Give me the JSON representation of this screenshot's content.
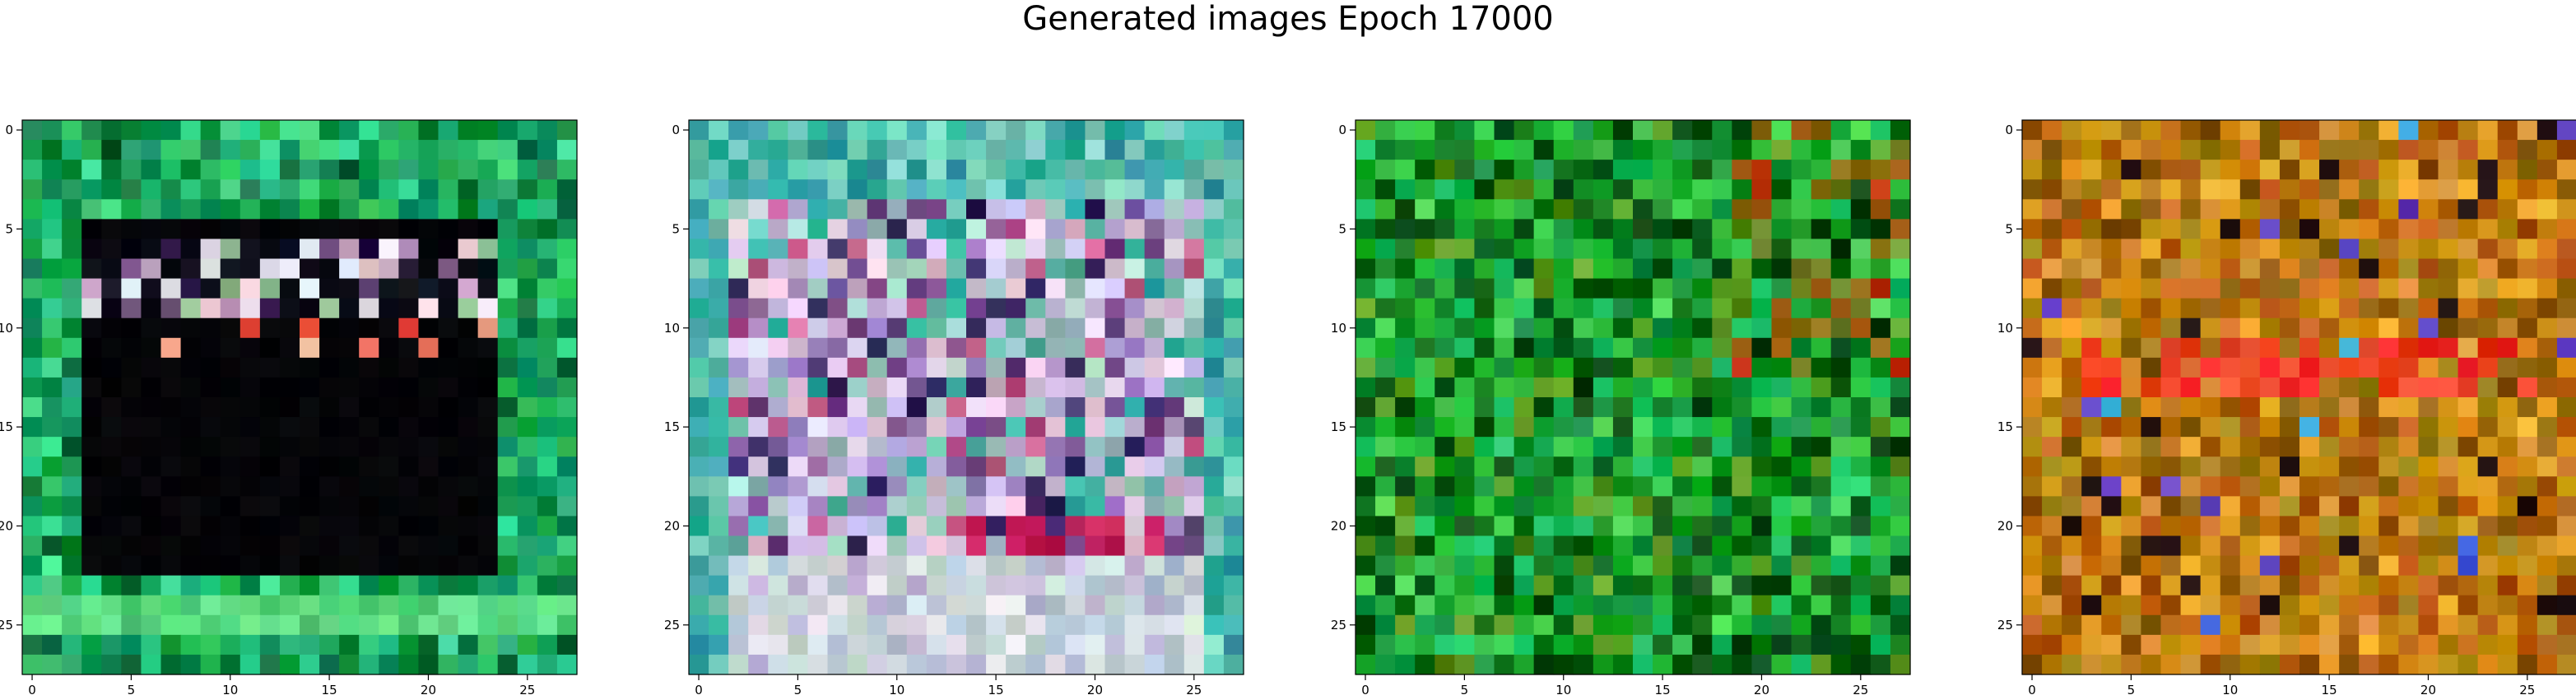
{
  "figure": {
    "title": "Generated images Epoch 17000"
  },
  "chart_data": [
    {
      "type": "heatmap",
      "grid": {
        "rows": 28,
        "cols": 28
      },
      "xticks": [
        0,
        5,
        10,
        15,
        20,
        25
      ],
      "yticks": [
        0,
        5,
        10,
        15,
        20,
        25
      ],
      "xlim": [
        -0.5,
        27.5
      ],
      "ylim": [
        27.5,
        -0.5
      ],
      "style": "green-frame-dark-center",
      "palette": [
        "#0f8f3f",
        "#21b04d",
        "#1a9e6a",
        "#34c26a",
        "#0a6a3a",
        "#2fd08a",
        "#11995a"
      ]
    },
    {
      "type": "heatmap",
      "grid": {
        "rows": 28,
        "cols": 28
      },
      "xticks": [
        0,
        5,
        10,
        15,
        20,
        25
      ],
      "yticks": [
        0,
        5,
        10,
        15,
        20,
        25
      ],
      "xlim": [
        -0.5,
        27.5
      ],
      "ylim": [
        27.5,
        -0.5
      ],
      "style": "pastel-purple-teal",
      "palette": [
        "#b7a6d6",
        "#9ec4c0",
        "#c9bde0",
        "#8f6fb3",
        "#5fb8a8",
        "#d7c9e3",
        "#7a4f8f",
        "#c05a8a",
        "#3b2b66",
        "#e0c2d8",
        "#a8d4c8",
        "#2fb0a0"
      ]
    },
    {
      "type": "heatmap",
      "grid": {
        "rows": 28,
        "cols": 28
      },
      "xticks": [
        0,
        5,
        10,
        15,
        20,
        25
      ],
      "yticks": [
        0,
        5,
        10,
        15,
        20,
        25
      ],
      "xlim": [
        -0.5,
        27.5
      ],
      "ylim": [
        27.5,
        -0.5
      ],
      "style": "green-field",
      "palette": [
        "#0a7a1a",
        "#14a028",
        "#066010",
        "#22b832",
        "#0e8c3a",
        "#3fc84a",
        "#5a9a20",
        "#044a10",
        "#1cc060"
      ]
    },
    {
      "type": "heatmap",
      "grid": {
        "rows": 28,
        "cols": 28
      },
      "xticks": [
        0,
        5,
        10,
        15,
        20,
        25
      ],
      "yticks": [
        0,
        5,
        10,
        15,
        20,
        25
      ],
      "xlim": [
        -0.5,
        27.5
      ],
      "ylim": [
        27.5,
        -0.5
      ],
      "style": "orange-red-field",
      "palette": [
        "#c8780a",
        "#a85a08",
        "#d89a1a",
        "#b8860b",
        "#8a5a06",
        "#e0a020",
        "#9a7a10",
        "#c06018",
        "#d08a30"
      ]
    }
  ]
}
